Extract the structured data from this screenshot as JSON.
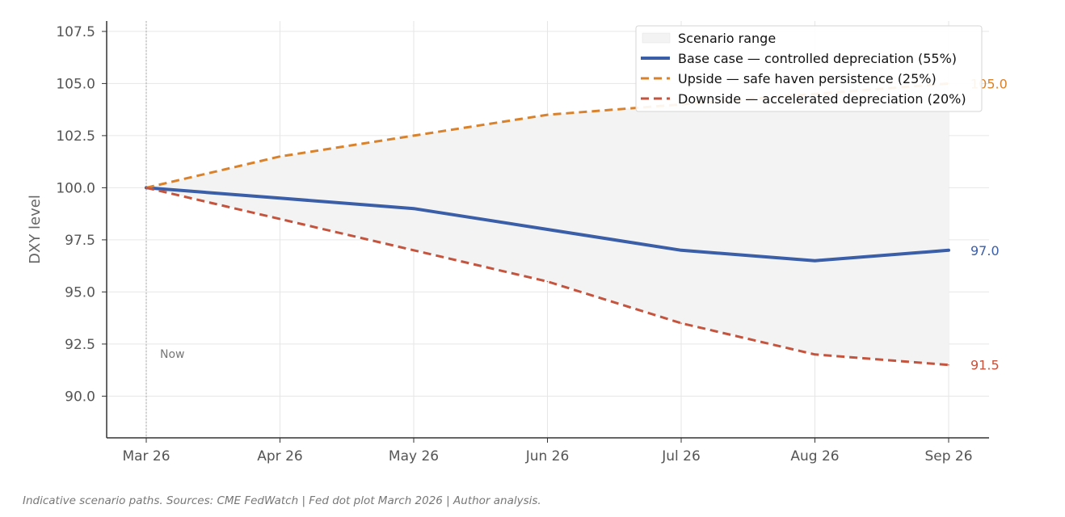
{
  "chart_data": {
    "type": "line",
    "title": "",
    "xlabel": "",
    "ylabel": "DXY level",
    "categories": [
      "Mar 26",
      "Apr 26",
      "May 26",
      "Jun 26",
      "Jul 26",
      "Aug 26",
      "Sep 26"
    ],
    "yticks": [
      "90.0",
      "92.5",
      "95.0",
      "97.5",
      "100.0",
      "102.5",
      "105.0",
      "107.5"
    ],
    "ylim": [
      88.0,
      108.0
    ],
    "grid": true,
    "legend_position": "top-right",
    "band": {
      "name": "Scenario range",
      "color": "#f3f3f3",
      "upper": [
        100.0,
        101.5,
        102.5,
        103.5,
        104.0,
        104.5,
        105.0
      ],
      "lower": [
        100.0,
        98.5,
        97.0,
        95.5,
        93.5,
        92.0,
        91.5
      ]
    },
    "series": [
      {
        "name": "Base case — controlled depreciation (55%)",
        "values": [
          100.0,
          99.5,
          99.0,
          98.0,
          97.0,
          96.5,
          97.0
        ],
        "color": "#3a5ea8",
        "style": "solid",
        "end_label": "97.0"
      },
      {
        "name": "Upside — safe haven persistence (25%)",
        "values": [
          100.0,
          101.5,
          102.5,
          103.5,
          104.0,
          104.5,
          105.0
        ],
        "color": "#d9822b",
        "style": "dashed",
        "end_label": "105.0"
      },
      {
        "name": "Downside — accelerated depreciation (20%)",
        "values": [
          100.0,
          98.5,
          97.0,
          95.5,
          93.5,
          92.0,
          91.5
        ],
        "color": "#c4543d",
        "style": "dashed",
        "end_label": "91.5"
      }
    ],
    "annotations": [
      {
        "text": "Now",
        "x": "Mar 26"
      }
    ]
  },
  "caption": "Indicative scenario paths. Sources: CME FedWatch | Fed dot plot March 2026 | Author analysis."
}
